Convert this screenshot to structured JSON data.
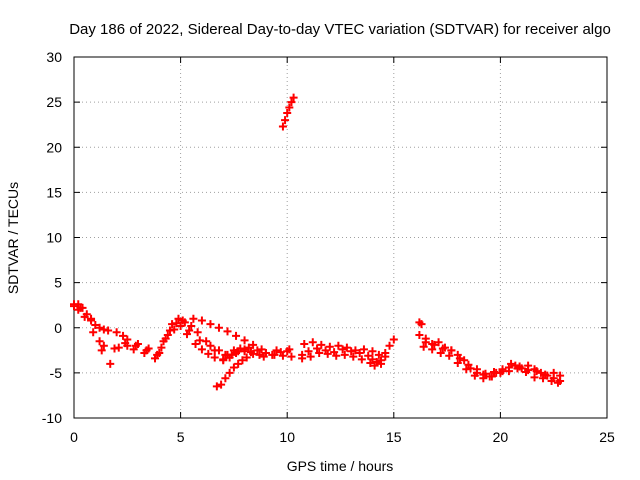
{
  "chart_data": {
    "type": "scatter",
    "title": "Day 186 of 2022, Sidereal Day-to-day VTEC variation (SDTVAR) for receiver algo",
    "xlabel": "GPS time / hours",
    "ylabel": "SDTVAR / TECUs",
    "xlim": [
      0,
      25
    ],
    "ylim": [
      -10,
      30
    ],
    "xticks": [
      0,
      5,
      10,
      15,
      20,
      25
    ],
    "yticks": [
      -10,
      -5,
      0,
      5,
      10,
      15,
      20,
      25,
      30
    ],
    "grid": true,
    "marker": "+",
    "series": [
      {
        "name": "SDTVAR",
        "color": "#ff0000",
        "x": [
          0.0,
          0.2,
          0.4,
          0.6,
          0.8,
          1.0,
          1.2,
          1.4,
          1.6,
          2.0,
          2.3,
          2.5,
          3.0,
          3.5,
          4.0,
          4.3,
          4.6,
          4.9,
          5.2,
          5.5,
          5.8,
          6.2,
          6.6,
          7.0,
          7.2,
          7.5,
          7.8,
          8.2,
          8.6,
          9.0,
          9.4,
          9.8,
          10.2,
          0.2,
          0.5,
          0.9,
          1.3,
          1.7,
          2.1,
          2.5,
          2.8,
          3.3,
          3.8,
          4.1,
          4.4,
          4.7,
          5.0,
          5.3,
          5.7,
          6.0,
          6.3,
          6.6,
          7.0,
          7.4,
          7.7,
          8.0,
          8.3,
          8.7,
          9.0,
          9.5,
          10.0,
          0.0,
          0.3,
          0.8,
          1.2,
          1.4,
          1.9,
          2.4,
          2.9,
          3.4,
          3.9,
          4.2,
          4.5,
          4.8,
          5.1,
          5.4,
          5.9,
          6.4,
          6.8,
          7.1,
          7.3,
          7.6,
          8.0,
          8.4,
          8.9,
          9.3,
          9.7,
          10.1,
          5.6,
          6.0,
          6.4,
          6.8,
          7.2,
          7.6,
          8.0,
          8.4,
          8.8,
          6.7,
          6.9,
          7.1,
          7.3,
          7.5,
          7.7,
          7.9,
          8.1,
          9.8,
          9.9,
          10.0,
          10.1,
          10.2,
          10.3,
          10.7,
          11.0,
          11.4,
          11.8,
          12.2,
          12.6,
          13.0,
          13.4,
          13.8,
          14.0,
          14.2,
          14.4,
          14.6,
          14.8,
          15.0,
          10.8,
          11.2,
          11.6,
          12.0,
          12.4,
          12.8,
          13.2,
          13.6,
          14.0,
          14.3,
          14.6,
          10.7,
          11.1,
          11.5,
          11.9,
          12.3,
          12.7,
          13.1,
          13.5,
          13.9,
          14.1,
          14.4,
          16.2,
          16.3,
          16.2,
          16.5,
          16.8,
          17.1,
          17.4,
          17.7,
          18.0,
          18.3,
          18.6,
          18.9,
          19.2,
          19.5,
          19.8,
          20.1,
          20.4,
          20.7,
          21.0,
          21.3,
          21.6,
          21.9,
          22.2,
          22.5,
          22.8,
          16.5,
          16.9,
          17.3,
          17.7,
          18.1,
          18.5,
          18.9,
          19.3,
          19.7,
          20.1,
          20.5,
          20.9,
          21.3,
          21.7,
          22.1,
          22.5,
          22.8,
          16.4,
          16.8,
          17.2,
          17.6,
          18.0,
          18.4,
          18.8,
          19.2,
          19.6,
          20.0,
          20.4,
          20.8,
          21.2,
          21.6,
          22.0,
          22.4,
          22.7
        ],
        "y": [
          2.4,
          2.6,
          2.2,
          1.5,
          0.8,
          0.3,
          0.0,
          -0.2,
          -0.3,
          -0.5,
          -0.9,
          -1.3,
          -1.8,
          -2.3,
          -2.8,
          -1.2,
          0.4,
          1.0,
          0.6,
          0.2,
          -0.5,
          -1.5,
          -2.5,
          -3.5,
          -3.0,
          -2.5,
          -2.3,
          -2.2,
          -2.5,
          -2.8,
          -3.0,
          -3.1,
          -3.2,
          2.0,
          1.2,
          -0.5,
          -2.5,
          -4.0,
          -2.2,
          -2.0,
          -2.4,
          -2.8,
          -3.4,
          -2.2,
          -0.8,
          -0.2,
          0.2,
          -0.7,
          -1.8,
          -2.4,
          -2.9,
          -3.3,
          -3.6,
          -3.0,
          -2.6,
          -2.4,
          -2.7,
          -3.0,
          -2.8,
          -2.5,
          -2.6,
          2.6,
          2.2,
          1.0,
          -1.5,
          -2.0,
          -2.3,
          -1.7,
          -2.0,
          -2.5,
          -3.0,
          -1.5,
          -0.3,
          0.5,
          0.8,
          -0.3,
          -1.4,
          -2.0,
          -2.5,
          -3.0,
          -3.3,
          -2.8,
          -2.6,
          -2.9,
          -3.2,
          -3.0,
          -2.7,
          -2.4,
          1.0,
          0.8,
          0.4,
          0.0,
          -0.4,
          -0.9,
          -1.4,
          -1.9,
          -2.4,
          -6.5,
          -6.3,
          -5.6,
          -5.0,
          -4.4,
          -4.0,
          -3.6,
          -3.3,
          22.3,
          23.0,
          23.8,
          24.4,
          25.0,
          25.5,
          -3.0,
          -2.6,
          -2.3,
          -2.5,
          -2.7,
          -2.4,
          -2.6,
          -2.8,
          -3.1,
          -3.5,
          -3.8,
          -3.6,
          -2.8,
          -2.0,
          -1.3,
          -1.8,
          -1.6,
          -1.9,
          -2.1,
          -2.0,
          -2.2,
          -2.5,
          -2.4,
          -2.6,
          -3.0,
          -3.2,
          -3.4,
          -3.2,
          -2.8,
          -2.9,
          -3.1,
          -3.0,
          -3.2,
          -3.5,
          -3.9,
          -4.2,
          -4.0,
          0.6,
          0.4,
          -0.8,
          -1.2,
          -1.8,
          -1.6,
          -2.2,
          -2.5,
          -3.0,
          -3.6,
          -4.5,
          -5.0,
          -5.2,
          -5.4,
          -5.0,
          -4.8,
          -4.4,
          -4.2,
          -4.5,
          -4.7,
          -4.6,
          -5.0,
          -5.3,
          -5.6,
          -5.9,
          -1.6,
          -1.9,
          -2.3,
          -2.5,
          -3.4,
          -4.1,
          -4.6,
          -5.1,
          -4.9,
          -4.6,
          -4.0,
          -4.3,
          -4.2,
          -4.8,
          -5.2,
          -5.0,
          -5.3,
          -2.1,
          -2.4,
          -2.8,
          -3.1,
          -3.9,
          -4.6,
          -5.3,
          -5.6,
          -5.4,
          -5.0,
          -4.8,
          -4.5,
          -4.9,
          -5.5,
          -5.6,
          -5.9,
          -6.1
        ]
      }
    ]
  }
}
